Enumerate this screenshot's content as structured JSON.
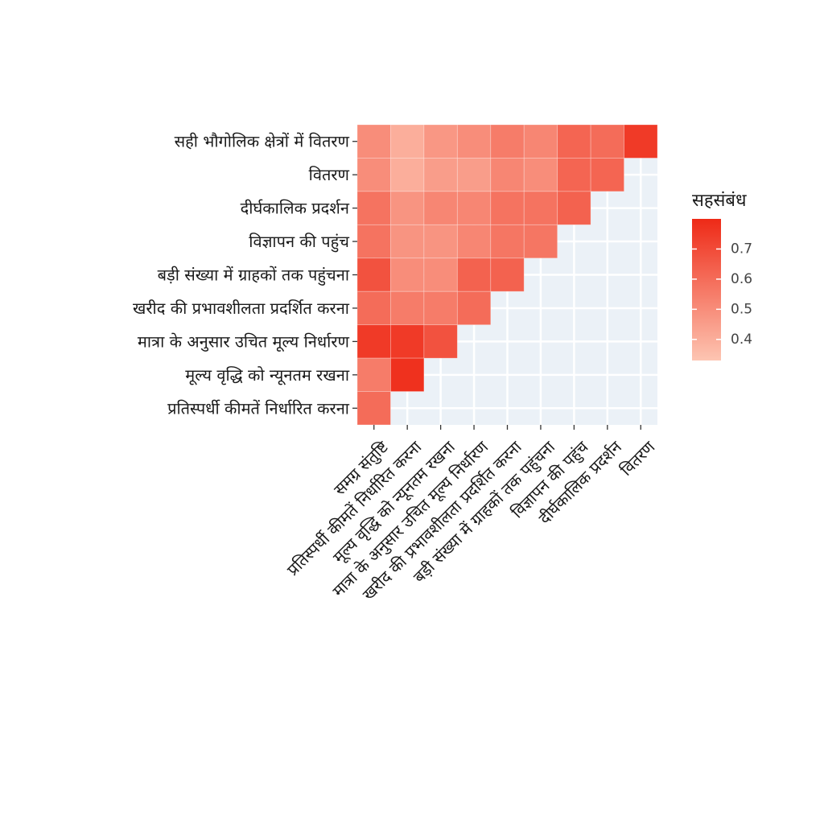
{
  "chart_data": {
    "type": "heatmap",
    "title": "",
    "xlabel": "",
    "ylabel": "",
    "x_categories": [
      "समग्र संतुष्टि",
      "प्रतिस्पर्धी कीमतें निर्धारित करना",
      "मूल्य वृद्धि को न्यूनतम रखना",
      "मात्रा के अनुसार उचित मूल्य निर्धारण",
      "खरीद की प्रभावशीलता प्रदर्शित करना",
      "बड़ी संख्या में ग्राहकों तक पहुंचना",
      "विज्ञापन की पहुंच",
      "दीर्घकालिक प्रदर्शन",
      "वितरण"
    ],
    "y_categories": [
      "सही भौगोलिक क्षेत्रों में वितरण",
      "वितरण",
      "दीर्घकालिक प्रदर्शन",
      "विज्ञापन की पहुंच",
      "बड़ी संख्या में ग्राहकों तक पहुंचना",
      "खरीद की प्रभावशीलता प्रदर्शित करना",
      "मात्रा के अनुसार उचित मूल्य निर्धारण",
      "मूल्य वृद्धि को न्यूनतम रखना",
      "प्रतिस्पर्धी कीमतें निर्धारित करना"
    ],
    "values": [
      [
        0.5,
        0.4,
        0.47,
        0.5,
        0.55,
        0.52,
        0.62,
        0.6,
        0.75
      ],
      [
        0.5,
        0.4,
        0.45,
        0.45,
        0.52,
        0.5,
        0.62,
        0.62
      ],
      [
        0.58,
        0.48,
        0.52,
        0.52,
        0.58,
        0.58,
        0.63
      ],
      [
        0.58,
        0.48,
        0.48,
        0.52,
        0.57,
        0.57
      ],
      [
        0.68,
        0.5,
        0.5,
        0.63,
        0.63
      ],
      [
        0.6,
        0.55,
        0.55,
        0.6
      ],
      [
        0.75,
        0.75,
        0.68
      ],
      [
        0.55,
        0.78
      ],
      [
        0.6
      ]
    ],
    "legend": {
      "title": "सहसंबंध",
      "ticks": [
        0.7,
        0.6,
        0.5,
        0.4
      ],
      "tick_labels": [
        "0.7",
        "0.6",
        "0.5",
        "0.4"
      ],
      "min": 0.33,
      "max": 0.8,
      "low_color": "#fdc5b2",
      "high_color": "#ee2a17"
    },
    "panel_background": "#ebf1f7",
    "grid": true,
    "legend_position": "right"
  }
}
